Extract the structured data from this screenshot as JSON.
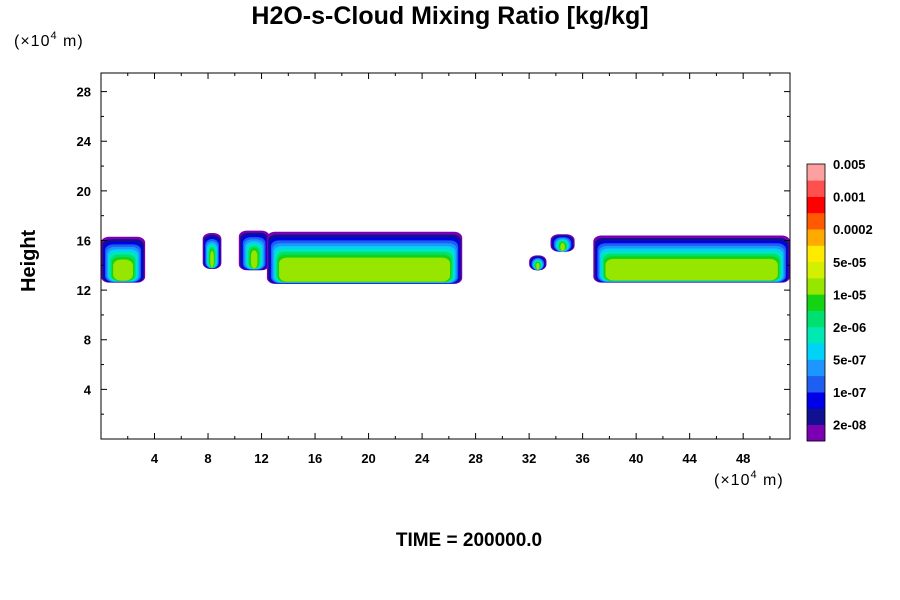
{
  "chart_data": {
    "type": "heatmap",
    "title": "H2O-s-Cloud Mixing Ratio [kg/kg]",
    "ylabel": "Height",
    "x_unit_prefix": "(×10",
    "x_unit_exp": "4",
    "x_unit_suffix": " m)",
    "y_unit_prefix": "(×10",
    "y_unit_exp": "4",
    "y_unit_suffix": " m)",
    "xlim": [
      0,
      51.5
    ],
    "ylim": [
      0,
      29.5
    ],
    "x_ticks": [
      4,
      8,
      12,
      16,
      20,
      24,
      28,
      32,
      36,
      40,
      44,
      48
    ],
    "y_ticks": [
      4,
      8,
      12,
      16,
      20,
      24,
      28
    ],
    "footer": "TIME = 200000.0",
    "colorbar": {
      "colors": [
        "#7b00b4",
        "#101090",
        "#0000e8",
        "#1e5ef0",
        "#1e96ff",
        "#00d2f8",
        "#00e8b4",
        "#00e070",
        "#14d214",
        "#96e600",
        "#d2f000",
        "#ffea00",
        "#ffaa00",
        "#ff5a00",
        "#ff0000",
        "#ff5050",
        "#ffa0a0"
      ],
      "labels": [
        "2e-08",
        "1e-07",
        "5e-07",
        "2e-06",
        "1e-05",
        "5e-05",
        "0.0002",
        "0.001",
        "0.005"
      ]
    },
    "cloud_regions": [
      {
        "x": [
          0,
          3.3
        ],
        "y": [
          12.6,
          16.3
        ]
      },
      {
        "x": [
          7.6,
          9.0
        ],
        "y": [
          13.7,
          16.6
        ]
      },
      {
        "x": [
          10.3,
          12.6
        ],
        "y": [
          13.6,
          16.8
        ]
      },
      {
        "x": [
          12.4,
          27.0
        ],
        "y": [
          12.5,
          16.7
        ]
      },
      {
        "x": [
          32.0,
          33.3
        ],
        "y": [
          13.6,
          14.8
        ]
      },
      {
        "x": [
          33.6,
          35.4
        ],
        "y": [
          15.1,
          16.5
        ]
      },
      {
        "x": [
          36.8,
          51.5
        ],
        "y": [
          12.6,
          16.4
        ]
      }
    ]
  }
}
